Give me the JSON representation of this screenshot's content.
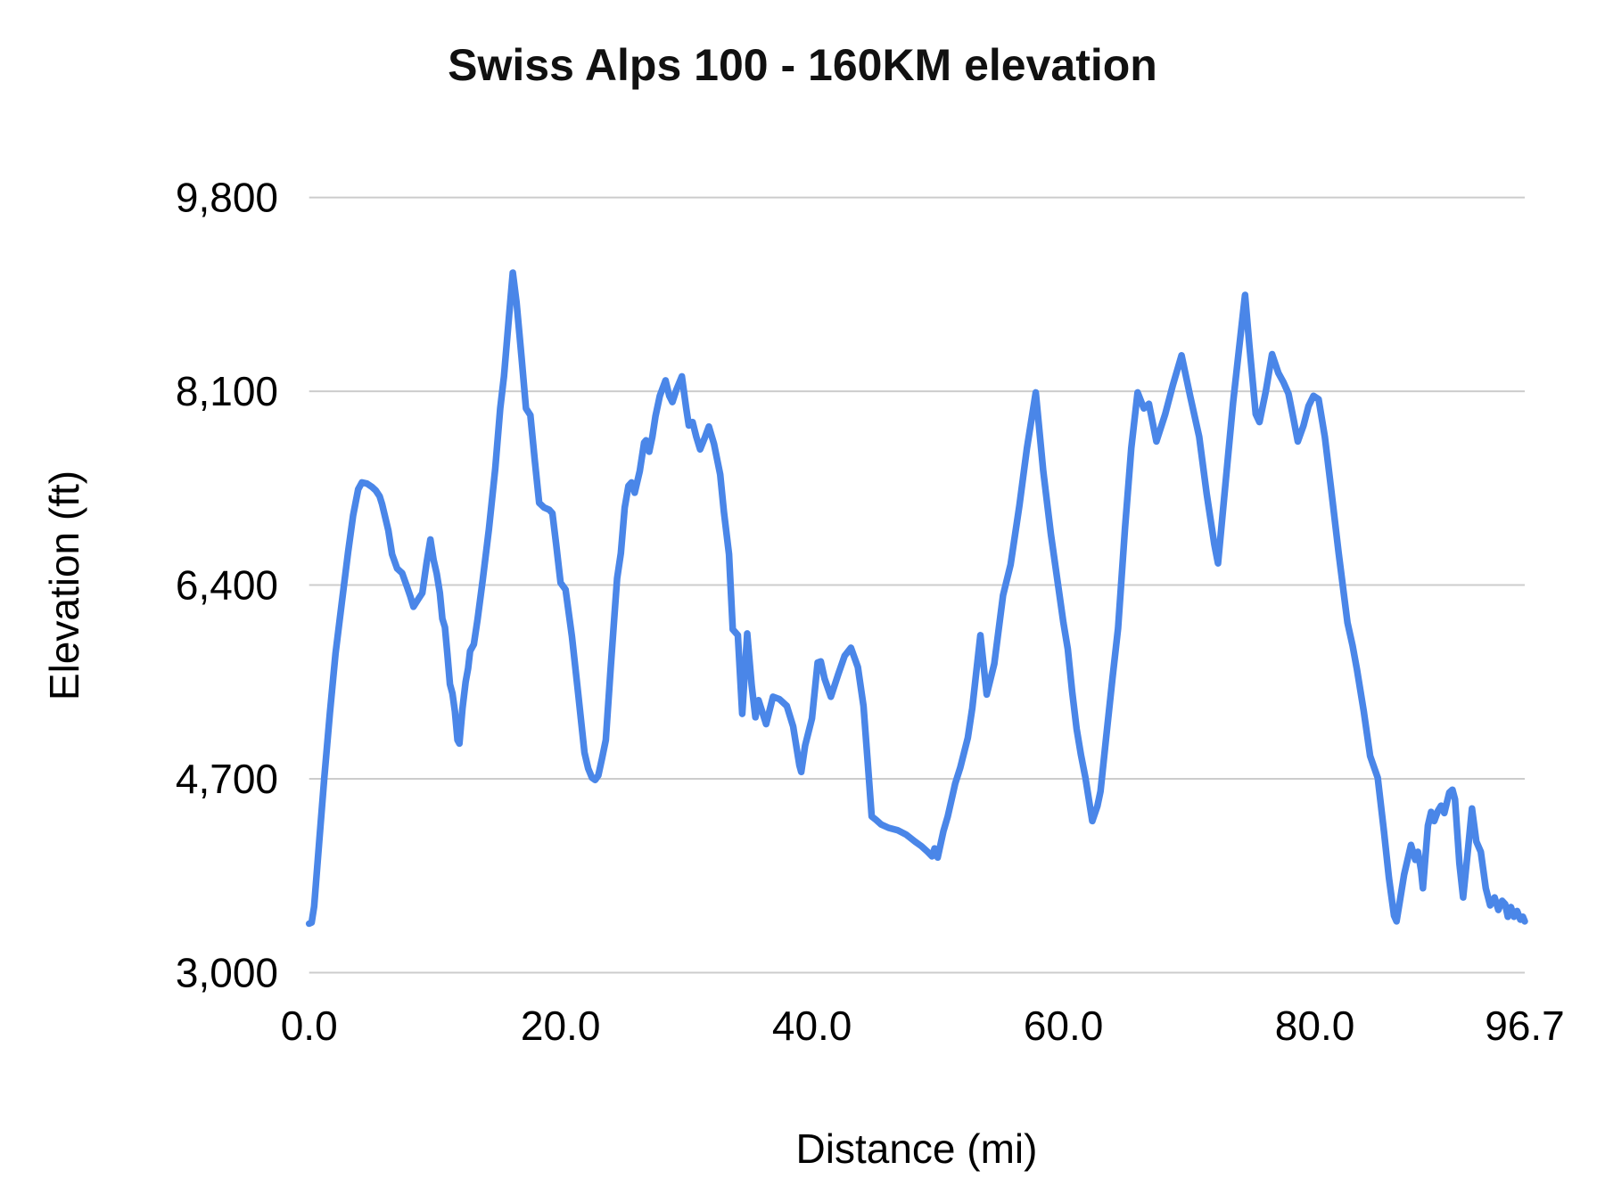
{
  "title": "Swiss Alps 100 - 160KM elevation",
  "colors": {
    "line": "#4a86e8",
    "grid": "#cccccc",
    "text": "#000000",
    "title_text": "#111111",
    "background": "#ffffff"
  },
  "chart_data": {
    "type": "line",
    "title": "Swiss Alps 100 - 160KM elevation",
    "xlabel": "Distance (mi)",
    "ylabel": "Elevation (ft)",
    "xlim": [
      0,
      96.7
    ],
    "ylim": [
      3000,
      9800
    ],
    "grid": "horizontal-only",
    "legend": "none",
    "x_ticks": [
      {
        "value": 0,
        "label": "0.0"
      },
      {
        "value": 20,
        "label": "20.0"
      },
      {
        "value": 40,
        "label": "40.0"
      },
      {
        "value": 60,
        "label": "60.0"
      },
      {
        "value": 80,
        "label": "80.0"
      },
      {
        "value": 96.7,
        "label": "96.7"
      }
    ],
    "y_ticks": [
      {
        "value": 3000,
        "label": "3,000"
      },
      {
        "value": 4700,
        "label": "4,700"
      },
      {
        "value": 6400,
        "label": "6,400"
      },
      {
        "value": 8100,
        "label": "8,100"
      },
      {
        "value": 9800,
        "label": "9,800"
      }
    ],
    "series": [
      {
        "name": "Elevation",
        "color": "#4a86e8",
        "x": [
          0,
          0.2,
          0.4,
          0.8,
          1.2,
          1.65,
          2.1,
          2.6,
          3.1,
          3.5,
          3.9,
          4.2,
          4.6,
          5,
          5.3,
          5.6,
          5.8,
          6.3,
          6.6,
          7,
          7.4,
          7.8,
          8.05,
          8.3,
          8.7,
          9,
          9.35,
          9.65,
          9.9,
          10.15,
          10.4,
          10.6,
          10.8,
          11,
          11.2,
          11.4,
          11.6,
          11.8,
          11.95,
          12.2,
          12.45,
          12.65,
          12.8,
          13.1,
          13.4,
          13.8,
          14.3,
          14.8,
          15.2,
          15.5,
          15.9,
          16.2,
          16.5,
          16.9,
          17.25,
          17.6,
          17.95,
          18.3,
          18.7,
          19.1,
          19.35,
          19.65,
          20,
          20.4,
          20.9,
          21.4,
          21.9,
          22.2,
          22.5,
          22.75,
          23,
          23.3,
          23.6,
          24,
          24.5,
          24.8,
          25.1,
          25.4,
          25.65,
          25.9,
          26.3,
          26.65,
          26.8,
          27.05,
          27.3,
          27.55,
          27.9,
          28.35,
          28.65,
          28.9,
          29.2,
          29.65,
          30,
          30.2,
          30.5,
          30.8,
          31.1,
          31.5,
          31.8,
          32.2,
          32.7,
          33,
          33.4,
          33.7,
          34.1,
          34.45,
          34.85,
          35.2,
          35.5,
          35.75,
          36.1,
          36.35,
          36.9,
          37.4,
          38,
          38.5,
          39,
          39.15,
          39.45,
          40,
          40.45,
          40.7,
          41,
          41.5,
          42.1,
          42.6,
          43.1,
          43.65,
          44.1,
          44.45,
          44.75,
          45.1,
          45.5,
          46.1,
          46.8,
          47.5,
          48.2,
          48.7,
          49.2,
          49.55,
          49.75,
          50,
          50.45,
          50.8,
          51.4,
          51.8,
          52.4,
          52.75,
          53.4,
          53.9,
          54.5,
          55.2,
          55.8,
          56.5,
          57.1,
          57.8,
          58.4,
          59,
          59.6,
          60,
          60.35,
          60.7,
          61.05,
          61.4,
          61.75,
          62.3,
          62.7,
          62.95,
          63.4,
          63.9,
          64.35,
          64.9,
          65.4,
          65.9,
          66.4,
          66.8,
          67.4,
          68.1,
          68.7,
          69.4,
          70.1,
          70.8,
          71.4,
          72,
          72.3,
          72.9,
          73.5,
          74.1,
          74.45,
          74.8,
          75.3,
          75.6,
          76.1,
          76.6,
          77.1,
          77.5,
          77.9,
          78.3,
          78.65,
          79.1,
          79.5,
          79.9,
          80.3,
          80.8,
          81.3,
          81.9,
          82.6,
          83,
          83.35,
          83.9,
          84.4,
          85,
          85.5,
          85.9,
          86.3,
          86.5,
          86.8,
          87.1,
          87.65,
          88,
          88.2,
          88.45,
          88.6,
          89,
          89.25,
          89.5,
          89.8,
          90.05,
          90.3,
          90.7,
          90.95,
          91.15,
          91.5,
          91.8,
          92.2,
          92.5,
          92.85,
          93.2,
          93.6,
          93.95,
          94.3,
          94.6,
          94.9,
          95.15,
          95.35,
          95.6,
          95.85,
          96.1,
          96.35,
          96.55,
          96.7
        ],
        "y": [
          3430,
          3440,
          3580,
          4150,
          4700,
          5280,
          5800,
          6250,
          6690,
          7010,
          7240,
          7300,
          7290,
          7260,
          7230,
          7180,
          7110,
          6880,
          6670,
          6545,
          6505,
          6380,
          6300,
          6210,
          6280,
          6330,
          6600,
          6800,
          6620,
          6500,
          6330,
          6105,
          6030,
          5790,
          5530,
          5450,
          5290,
          5040,
          5010,
          5320,
          5550,
          5670,
          5820,
          5880,
          6100,
          6440,
          6890,
          7420,
          7950,
          8230,
          8760,
          9140,
          8880,
          8390,
          7950,
          7890,
          7490,
          7120,
          7080,
          7060,
          7030,
          6760,
          6420,
          6360,
          5950,
          5450,
          4930,
          4790,
          4710,
          4690,
          4730,
          4880,
          5040,
          5700,
          6460,
          6680,
          7080,
          7270,
          7300,
          7210,
          7400,
          7650,
          7670,
          7570,
          7700,
          7880,
          8060,
          8195,
          8060,
          8005,
          8110,
          8230,
          7950,
          7800,
          7830,
          7700,
          7590,
          7700,
          7790,
          7640,
          7370,
          7040,
          6670,
          6010,
          5960,
          5270,
          5975,
          5520,
          5240,
          5390,
          5270,
          5180,
          5420,
          5400,
          5340,
          5160,
          4820,
          4760,
          4990,
          5230,
          5720,
          5730,
          5580,
          5420,
          5620,
          5780,
          5850,
          5680,
          5340,
          4820,
          4370,
          4340,
          4300,
          4270,
          4250,
          4210,
          4150,
          4110,
          4060,
          4020,
          4090,
          4010,
          4240,
          4370,
          4660,
          4800,
          5060,
          5320,
          5960,
          5440,
          5710,
          6310,
          6580,
          7100,
          7600,
          8090,
          7400,
          6850,
          6380,
          6070,
          5840,
          5460,
          5140,
          4910,
          4710,
          4330,
          4460,
          4590,
          5060,
          5580,
          6020,
          6900,
          7600,
          8090,
          7950,
          7990,
          7660,
          7900,
          8150,
          8415,
          8050,
          7700,
          7200,
          6760,
          6590,
          7300,
          8000,
          8600,
          8945,
          8500,
          7900,
          7830,
          8100,
          8425,
          8260,
          8180,
          8080,
          7860,
          7660,
          7800,
          7970,
          8060,
          8030,
          7700,
          7240,
          6680,
          6070,
          5870,
          5660,
          5290,
          4900,
          4710,
          4240,
          3830,
          3500,
          3450,
          3650,
          3860,
          4120,
          3990,
          4060,
          3900,
          3740,
          4290,
          4410,
          4330,
          4420,
          4465,
          4400,
          4580,
          4605,
          4520,
          3960,
          3660,
          4100,
          4440,
          4150,
          4060,
          3740,
          3590,
          3660,
          3550,
          3630,
          3600,
          3490,
          3575,
          3490,
          3540,
          3465,
          3490,
          3450
        ]
      }
    ]
  }
}
